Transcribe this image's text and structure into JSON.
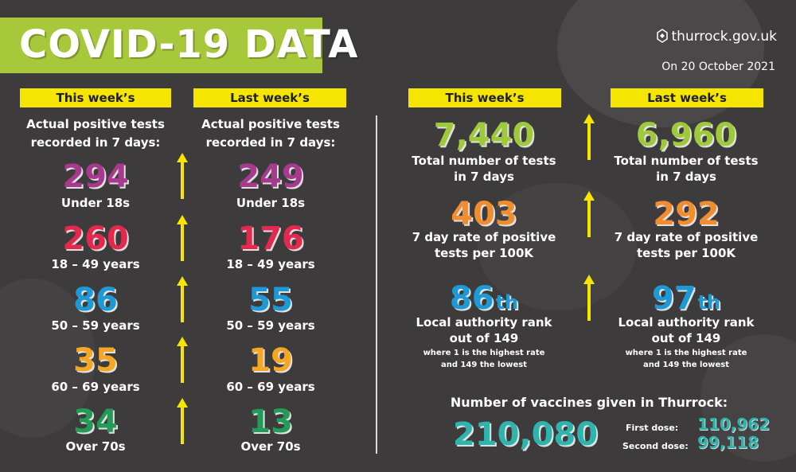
{
  "title": "COVID-19 DATA",
  "site": "thurrock.gov.uk",
  "date": "On 20 October 2021",
  "colors": {
    "title_bar": "#a7c83a",
    "header_bg": "#f5e500",
    "purple": "#a7398f",
    "red": "#e5284e",
    "blue": "#1d9ad6",
    "orange": "#f08e2f",
    "gold": "#f5a623",
    "green": "#229b57",
    "lime": "#9fc93c",
    "teal": "#2fb4ad",
    "arrow": "#f5e500"
  },
  "left": {
    "this_header": "This week’s",
    "last_header": "Last week’s",
    "label_line1": "Actual positive tests",
    "label_line2": "recorded in 7 days:",
    "rows": [
      {
        "this": "294",
        "last": "249",
        "label": "Under 18s",
        "color": "purple"
      },
      {
        "this": "260",
        "last": "176",
        "label": "18 – 49 years",
        "color": "red"
      },
      {
        "this": "86",
        "last": "55",
        "label": "50 – 59 years",
        "color": "blue"
      },
      {
        "this": "35",
        "last": "19",
        "label": "60 – 69 years",
        "color": "gold"
      },
      {
        "this": "34",
        "last": "13",
        "label": "Over 70s",
        "color": "green"
      }
    ]
  },
  "right": {
    "this_header": "This week’s",
    "last_header": "Last week’s",
    "tests": {
      "this": "7,440",
      "last": "6,960",
      "line1": "Total number of tests",
      "line2": "in 7 days"
    },
    "rate": {
      "this": "403",
      "last": "292",
      "line1": "7 day rate of positive",
      "line2": "tests per 100K"
    },
    "rank": {
      "this": "86",
      "this_suffix": "th",
      "last": "97",
      "last_suffix": "th",
      "line1": "Local authority rank",
      "line2": "out of 149",
      "note1": "where 1 is the highest rate",
      "note2": "and 149 the lowest"
    },
    "vaccines": {
      "heading": "Number of vaccines given in Thurrock:",
      "total": "210,080",
      "first_label": "First dose:",
      "first_value": "110,962",
      "second_label": "Second dose:",
      "second_value": "99,118"
    }
  }
}
